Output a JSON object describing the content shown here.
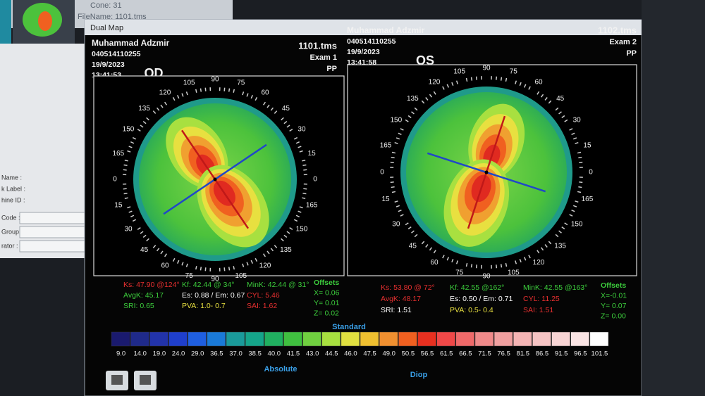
{
  "background_window": {
    "cone": "Cone: 31",
    "file_name": "FileName: 1101.tms"
  },
  "side_panel": {
    "labels": [
      "Name :",
      "k Label :",
      "hine ID :",
      "Code :",
      "Group :",
      "rator :"
    ]
  },
  "window_title": "Dual Map",
  "angle_labels": [
    "0",
    "15",
    "30",
    "45",
    "60",
    "75",
    "90",
    "105",
    "120",
    "135",
    "150",
    "165"
  ],
  "maps": [
    {
      "eye": "OD",
      "patient_name": "Muhammad Adzmir",
      "patient_id": "040514110255",
      "date": "19/9/2023",
      "time": "13:41:53",
      "file": "1101.tms",
      "exam": "Exam 1",
      "mode": "PP",
      "stats": [
        "Ks: 47.90 @124°",
        "AvgK: 45.17",
        "SRI: 0.65",
        "Kf: 42.44 @ 34°",
        "Es: 0.88 / Em: 0.67",
        "PVA: 1.0- 0.7",
        "MinK: 42.44 @ 31°",
        "CYL: 5.46",
        "SAI: 1.62"
      ],
      "offsets": {
        "title": "Offsets",
        "x": "X= 0.06",
        "y": "Y= 0.01",
        "z": "Z= 0.02"
      }
    },
    {
      "eye": "OS",
      "patient_name": "Muhammad Adzmir",
      "patient_id": "040514110255",
      "date": "19/9/2023",
      "time": "13:41:58",
      "file": "1102.tms",
      "exam": "Exam 2",
      "mode": "PP",
      "stats": [
        "Ks: 53.80 @ 72°",
        "AvgK: 48.17",
        "SRI: 1.51",
        "Kf: 42.55 @162°",
        "Es: 0.50 / Em: 0.71",
        "PVA: 0.5- 0.4",
        "MinK: 42.55 @163°",
        "CYL: 11.25",
        "SAI: 1.51"
      ],
      "offsets": {
        "title": "Offsets",
        "x": "X=-0.01",
        "y": "Y= 0.07",
        "z": "Z= 0.00"
      }
    }
  ],
  "scale": {
    "title": "Standard",
    "values": [
      "9.0",
      "14.0",
      "19.0",
      "24.0",
      "29.0",
      "36.5",
      "37.0",
      "38.5",
      "40.0",
      "41.5",
      "43.0",
      "44.5",
      "46.0",
      "47.5",
      "49.0",
      "50.5",
      "56.5",
      "61.5",
      "66.5",
      "71.5",
      "76.5",
      "81.5",
      "86.5",
      "91.5",
      "96.5",
      "101.5"
    ],
    "left_label": "Absolute",
    "right_label": "Diop"
  }
}
